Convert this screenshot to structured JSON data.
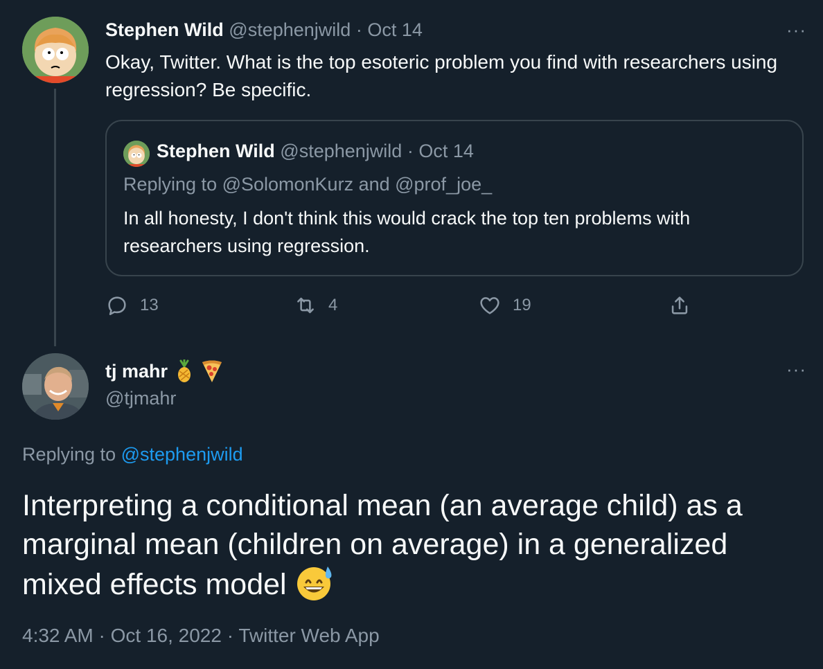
{
  "parent_tweet": {
    "display_name": "Stephen Wild",
    "handle": "@stephenjwild",
    "date": "Oct 14",
    "separator": "·",
    "more_glyph": "···",
    "text": "Okay, Twitter. What is the top esoteric problem you find with researchers using regression? Be specific.",
    "quoted": {
      "display_name": "Stephen Wild",
      "handle": "@stephenjwild",
      "date": "Oct 14",
      "replying_label": "Replying to @SolomonKurz and @prof_joe_",
      "text": "In all honesty, I don't think this would crack the top ten problems with researchers using regression."
    },
    "actions": {
      "reply_count": "13",
      "retweet_count": "4",
      "like_count": "19"
    }
  },
  "reply_tweet": {
    "display_name": "tj mahr",
    "name_emoji": [
      "pineapple-emoji",
      "pizza-emoji"
    ],
    "handle": "@tjmahr",
    "more_glyph": "···",
    "replying_prefix": "Replying to",
    "replying_handle": "@stephenjwild",
    "text": "Interpreting a conditional mean (an average child) as a marginal mean (children on average) in a generalized mixed effects model",
    "trailing_emoji": "grinning-sweat-emoji",
    "meta": "4:32 AM · Oct 16, 2022 · Twitter Web App"
  },
  "colors": {
    "background": "#15202b",
    "text": "#f7f9f9",
    "muted": "#8b98a5",
    "link": "#1d9bf0",
    "border": "#38444d"
  }
}
